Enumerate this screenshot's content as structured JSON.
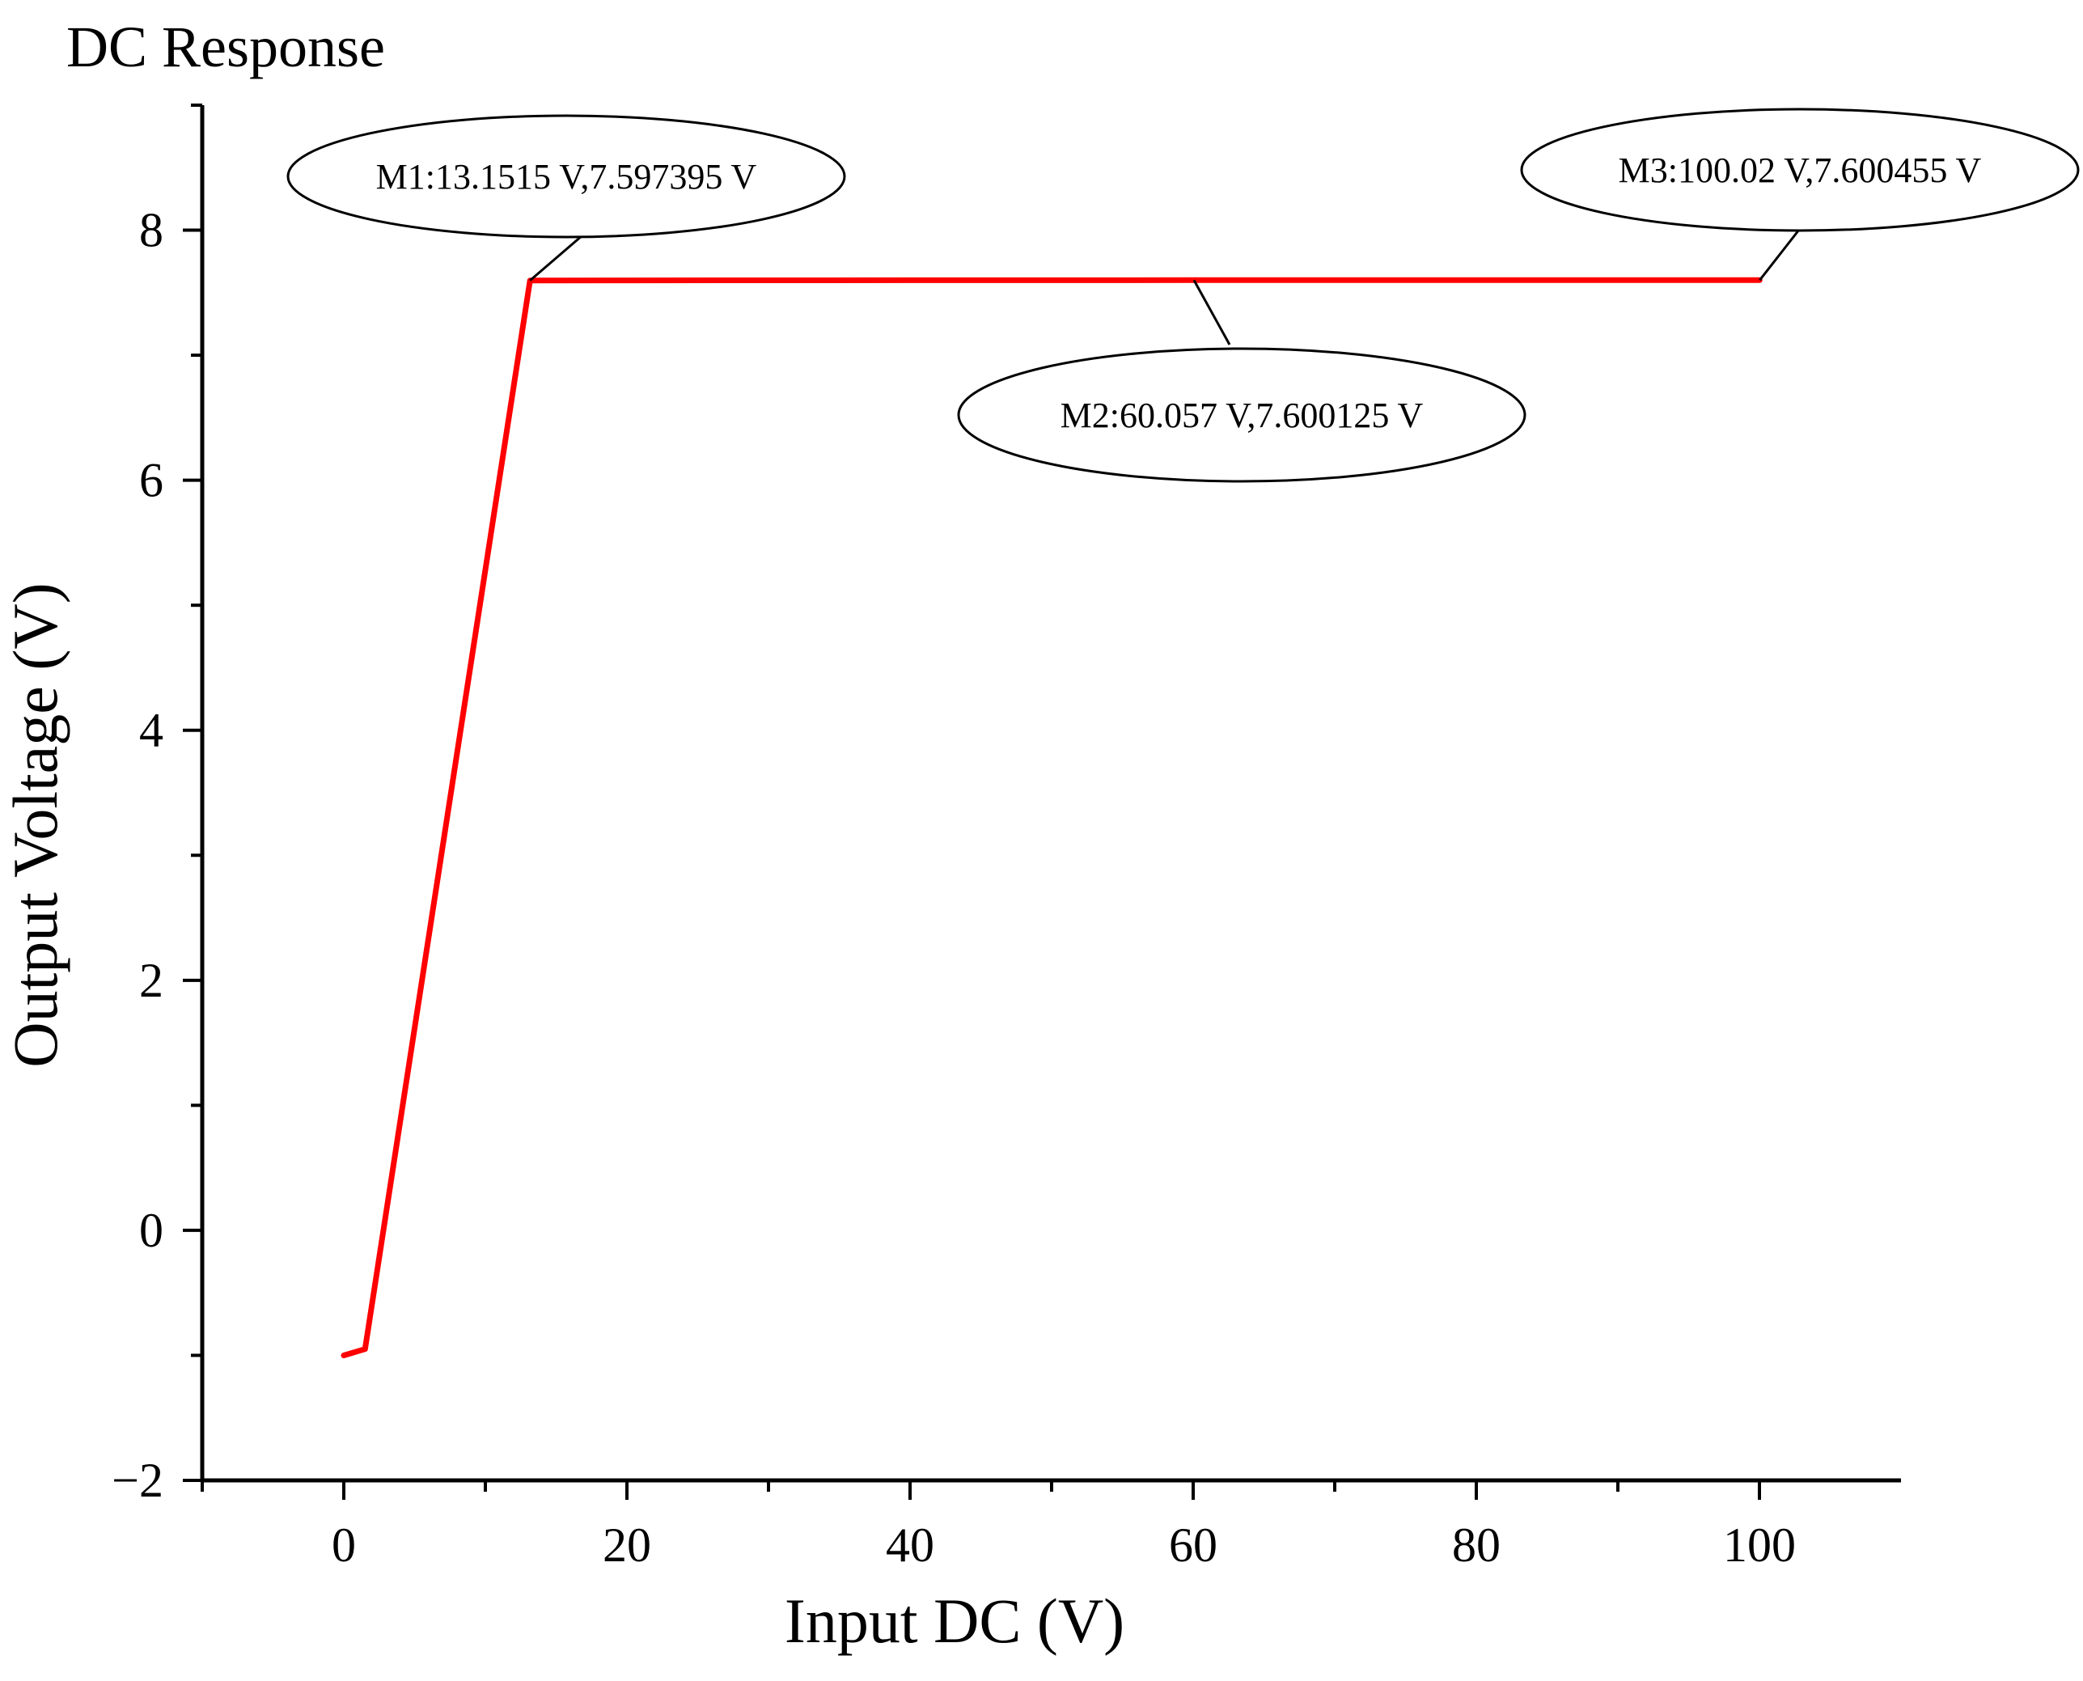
{
  "chart_data": {
    "type": "line",
    "title": "DC Response",
    "xlabel": "Input DC (V)",
    "ylabel": "Output Voltage (V)",
    "xlim": [
      -10,
      110
    ],
    "ylim": [
      -2,
      9
    ],
    "xticks": [
      0,
      20,
      40,
      60,
      80,
      100
    ],
    "xtick_labels": [
      "0",
      "20",
      "40",
      "60",
      "80",
      "100"
    ],
    "yticks": [
      -2,
      0,
      2,
      4,
      6,
      8
    ],
    "ytick_labels": [
      "−2",
      "0",
      "2",
      "4",
      "6",
      "8"
    ],
    "x_minor_step": 10,
    "y_minor_step": 1,
    "grid": false,
    "series": [
      {
        "name": "Output Voltage",
        "color": "#ff0000",
        "x": [
          0,
          1.5,
          13.1515,
          20,
          40,
          60.057,
          80,
          100.02
        ],
        "y": [
          -1.0,
          -0.95,
          7.597395,
          7.5985,
          7.5995,
          7.600125,
          7.6003,
          7.600455
        ]
      }
    ],
    "markers": [
      {
        "id": "M1",
        "label": "M1:13.1515 V,7.597395 V",
        "x": 13.1515,
        "y": 7.597395
      },
      {
        "id": "M2",
        "label": "M2:60.057 V,7.600125 V",
        "x": 60.057,
        "y": 7.600125
      },
      {
        "id": "M3",
        "label": "M3:100.02 V,7.600455 V",
        "x": 100.02,
        "y": 7.600455
      }
    ]
  }
}
